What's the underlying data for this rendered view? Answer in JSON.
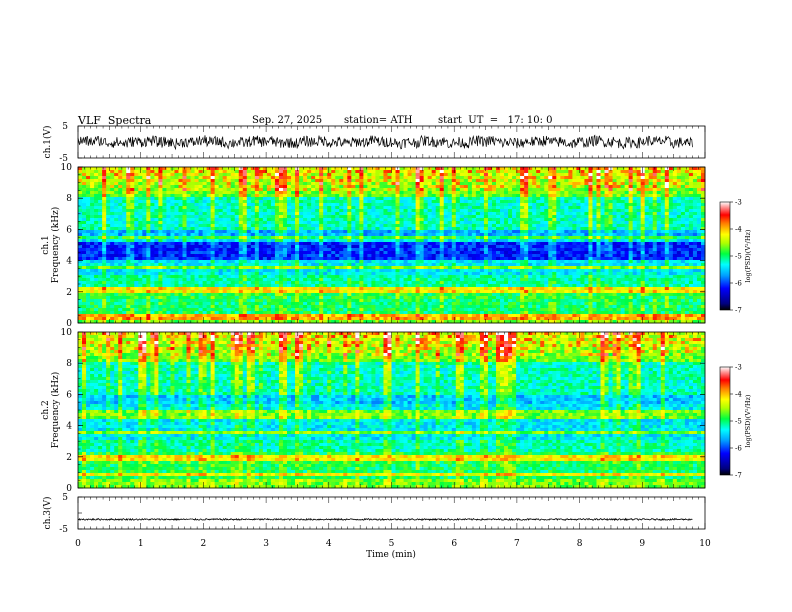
{
  "header": {
    "title": "VLF  Spectra",
    "date": "Sep. 27, 2025",
    "station": "station= ATH",
    "start": "start  UT  =   17: 10: 0"
  },
  "chart_data": [
    {
      "type": "line",
      "name": "ch1-waveform",
      "ylabel": "ch.1(V)",
      "ylim": [
        -5,
        5
      ],
      "yticks": [
        "5",
        "-5"
      ],
      "x_range_min": [
        0,
        9.8
      ]
    },
    {
      "type": "heatmap",
      "name": "ch1-spectrogram",
      "ylabel": "ch.1\nFrequency (kHz)",
      "ylabel_line1": "ch.1",
      "ylabel_line2": "Frequency  (kHz)",
      "ylim": [
        0,
        10
      ],
      "yticks": [
        "0",
        "2",
        "4",
        "6",
        "8",
        "10"
      ],
      "colorbar": {
        "label": "log(PSD)(V²/Hz)",
        "ticks": [
          "-3",
          "-4",
          "-5",
          "-6",
          "-7"
        ],
        "range": [
          -7,
          -3
        ]
      }
    },
    {
      "type": "heatmap",
      "name": "ch2-spectrogram",
      "ylabel": "ch.2\nFrequency (kHz)",
      "ylabel_line1": "ch.2",
      "ylabel_line2": "Frequency  (kHz)",
      "ylim": [
        0,
        10
      ],
      "yticks": [
        "0",
        "2",
        "4",
        "6",
        "8",
        "10"
      ],
      "colorbar": {
        "label": "log(PSD)(V²/Hz)",
        "ticks": [
          "-3",
          "-4",
          "-5",
          "-6",
          "-7"
        ],
        "range": [
          -7,
          -3
        ]
      }
    },
    {
      "type": "line",
      "name": "ch3-waveform",
      "ylabel": "ch.3(V)",
      "ylim": [
        -5,
        5
      ],
      "yticks": [
        "5",
        "-5"
      ],
      "x_range_min": [
        0,
        9.8
      ]
    }
  ],
  "xaxis": {
    "label": "Time  (min)",
    "ticks": [
      "0",
      "1",
      "2",
      "3",
      "4",
      "5",
      "6",
      "7",
      "8",
      "9",
      "10"
    ],
    "range": [
      0,
      10
    ]
  },
  "colors": {
    "colormap": [
      "#000080",
      "#0000ff",
      "#00a0ff",
      "#00ffff",
      "#00ff60",
      "#c0ff00",
      "#ffff00",
      "#ff8000",
      "#ff0000",
      "#ff9090",
      "#ffffff"
    ]
  }
}
